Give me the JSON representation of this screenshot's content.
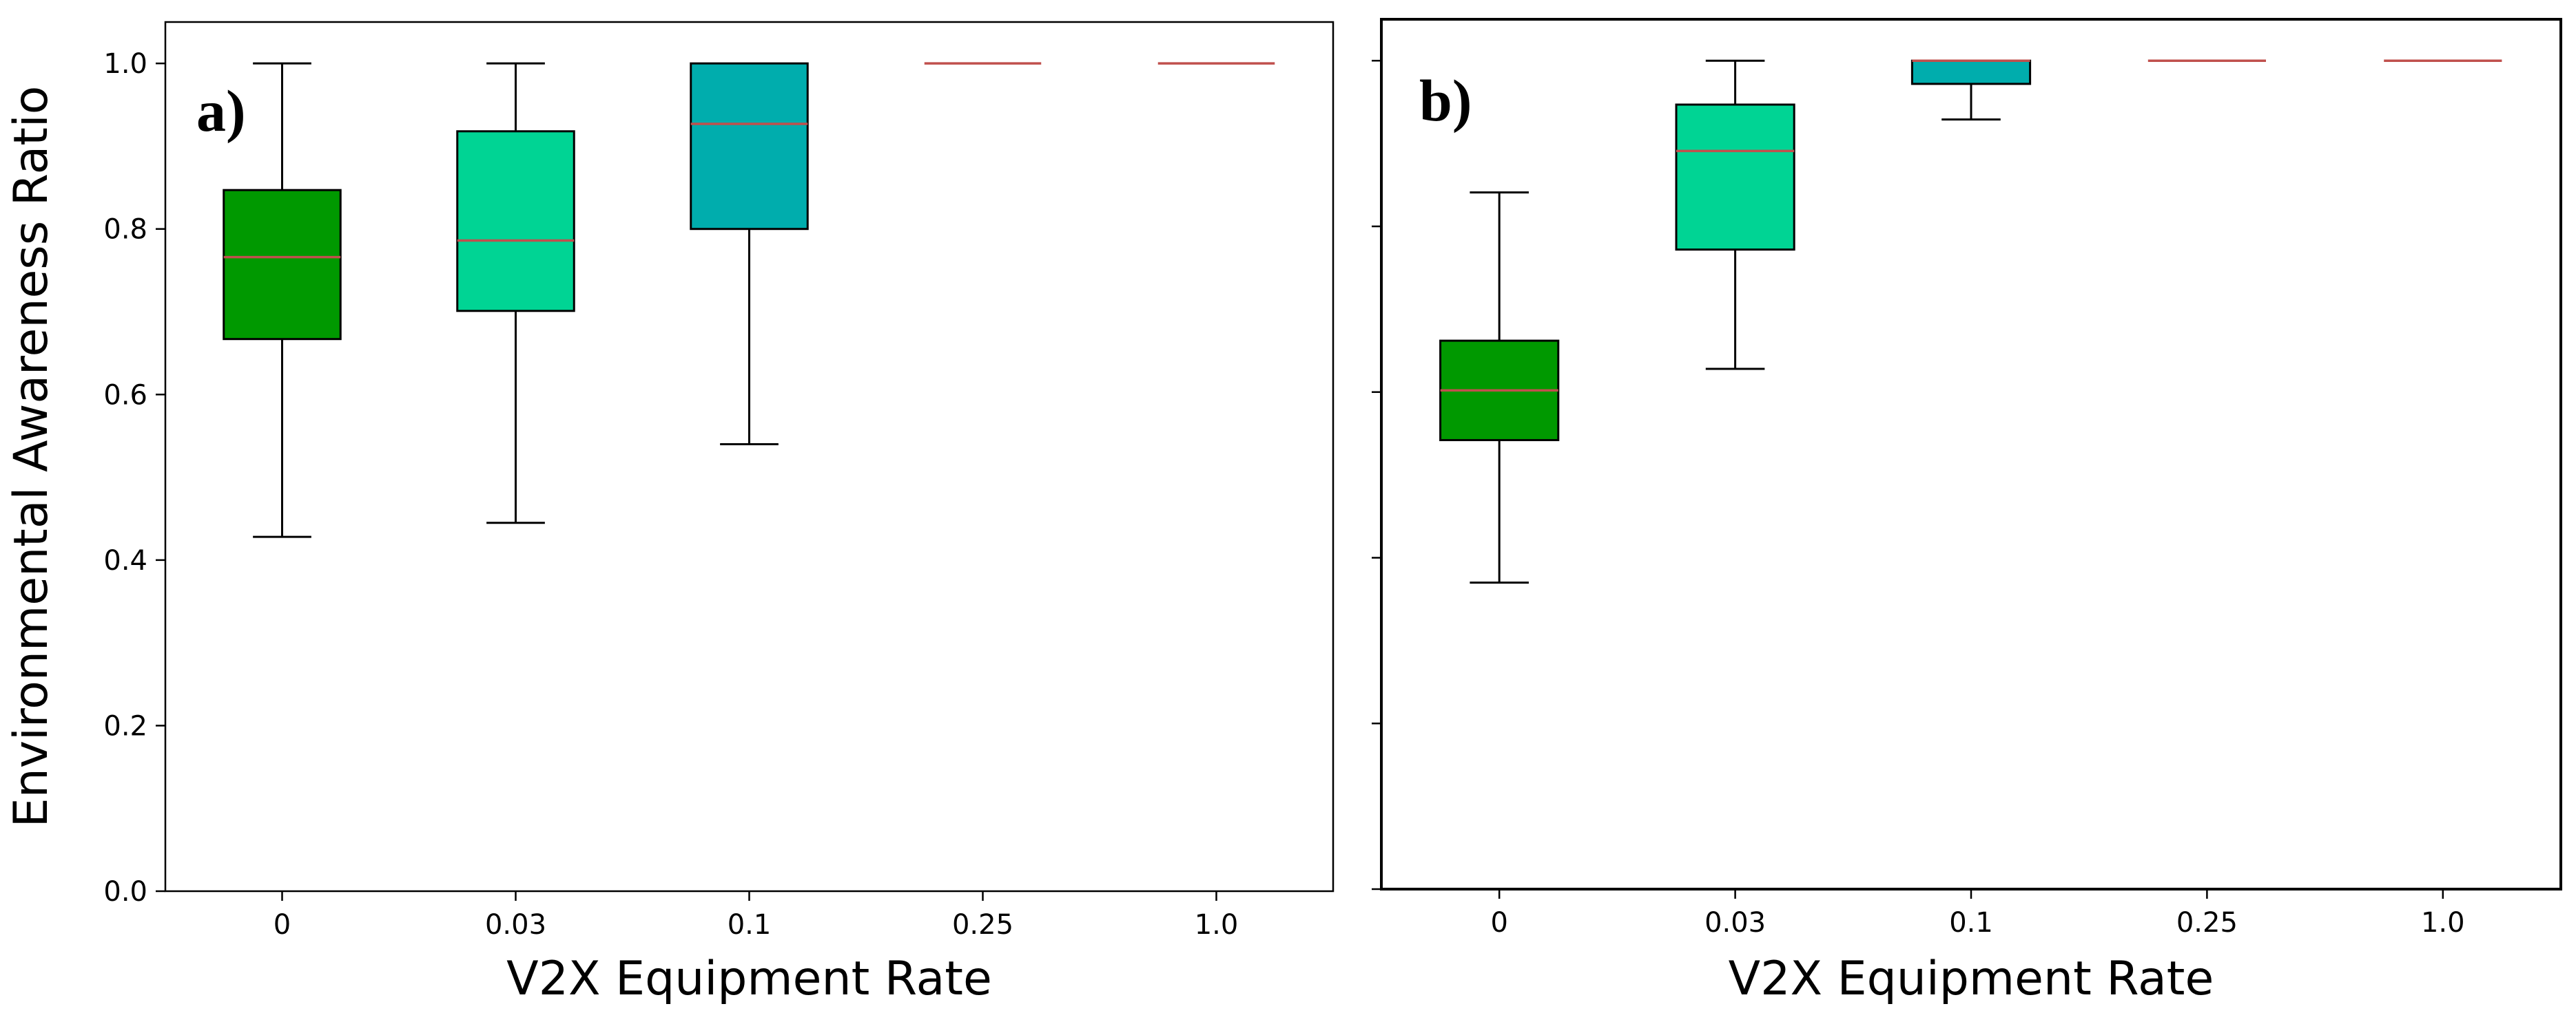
{
  "chart_data": [
    {
      "type": "box",
      "panel_label": "a)",
      "xlabel": "V2X Equipment Rate",
      "ylabel": "Environmental Awareness Ratio",
      "categories": [
        "0",
        "0.03",
        "0.1",
        "0.25",
        "1.0"
      ],
      "ylim": [
        0.0,
        1.05
      ],
      "yticks": [
        "0.0",
        "0.2",
        "0.4",
        "0.6",
        "0.8",
        "1.0"
      ],
      "grid": false,
      "boxes": [
        {
          "category": "0",
          "whisker_low": 0.428,
          "q1": 0.667,
          "median": 0.766,
          "q3": 0.847,
          "whisker_high": 1.0,
          "color": "#009900"
        },
        {
          "category": "0.03",
          "whisker_low": 0.445,
          "q1": 0.701,
          "median": 0.786,
          "q3": 0.918,
          "whisker_high": 1.0,
          "color": "#00d494"
        },
        {
          "category": "0.1",
          "whisker_low": 0.54,
          "q1": 0.8,
          "median": 0.927,
          "q3": 1.0,
          "whisker_high": 1.0,
          "color": "#00adad"
        },
        {
          "category": "0.25",
          "whisker_low": 1.0,
          "q1": 1.0,
          "median": 1.0,
          "q3": 1.0,
          "whisker_high": 1.0,
          "color": "#ffffff"
        },
        {
          "category": "1.0",
          "whisker_low": 1.0,
          "q1": 1.0,
          "median": 1.0,
          "q3": 1.0,
          "whisker_high": 1.0,
          "color": "#ffffff"
        }
      ]
    },
    {
      "type": "box",
      "panel_label": "b)",
      "xlabel": "V2X Equipment Rate",
      "ylabel": "",
      "categories": [
        "0",
        "0.03",
        "0.1",
        "0.25",
        "1.0"
      ],
      "ylim": [
        0.0,
        1.05
      ],
      "yticks": [
        "",
        "",
        "",
        "",
        "",
        ""
      ],
      "grid": false,
      "boxes": [
        {
          "category": "0",
          "whisker_low": 0.37,
          "q1": 0.542,
          "median": 0.602,
          "q3": 0.662,
          "whisker_high": 0.841,
          "color": "#009900"
        },
        {
          "category": "0.03",
          "whisker_low": 0.628,
          "q1": 0.772,
          "median": 0.891,
          "q3": 0.947,
          "whisker_high": 1.0,
          "color": "#00d494"
        },
        {
          "category": "0.1",
          "whisker_low": 0.929,
          "q1": 0.972,
          "median": 1.0,
          "q3": 1.0,
          "whisker_high": 1.0,
          "color": "#00adad"
        },
        {
          "category": "0.25",
          "whisker_low": 1.0,
          "q1": 1.0,
          "median": 1.0,
          "q3": 1.0,
          "whisker_high": 1.0,
          "color": "#ffffff"
        },
        {
          "category": "1.0",
          "whisker_low": 1.0,
          "q1": 1.0,
          "median": 1.0,
          "q3": 1.0,
          "whisker_high": 1.0,
          "color": "#ffffff"
        }
      ]
    }
  ],
  "colors": {
    "median_line": "#c0504d",
    "box_edge": "#000000",
    "axis": "#000000"
  }
}
